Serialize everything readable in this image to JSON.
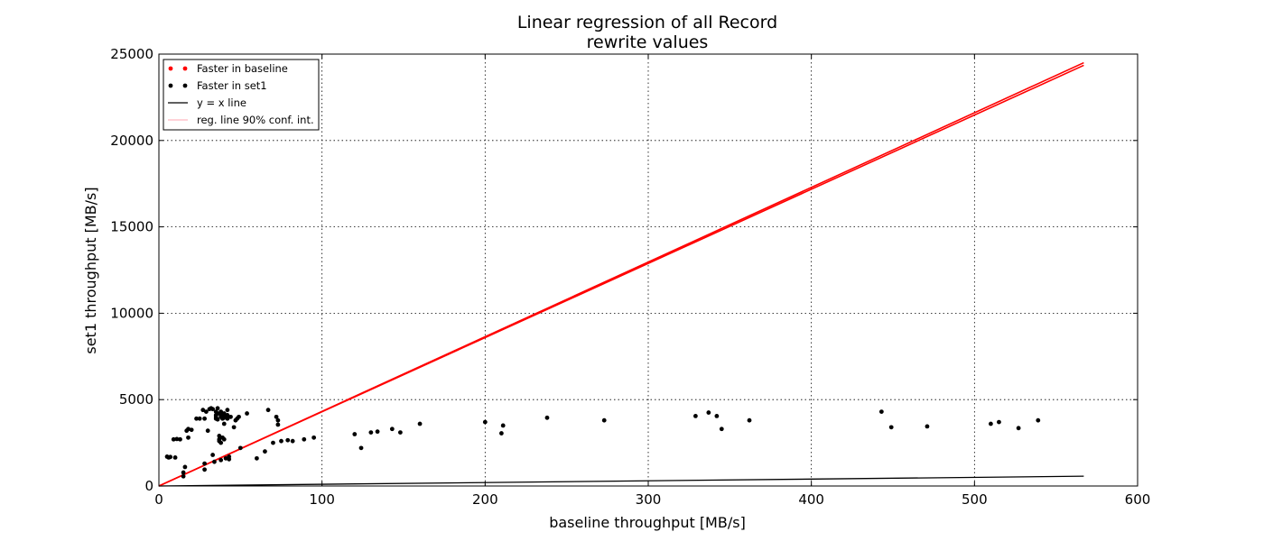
{
  "chart_data": {
    "type": "scatter",
    "title": [
      "Linear regression of all Record",
      "rewrite values"
    ],
    "xlabel": "baseline throughput [MB/s]",
    "ylabel": "set1 throughput [MB/s]",
    "xlim": [
      0,
      600
    ],
    "ylim": [
      0,
      25000
    ],
    "xticks": [
      0,
      100,
      200,
      300,
      400,
      500,
      600
    ],
    "yticks": [
      0,
      5000,
      10000,
      15000,
      20000,
      25000
    ],
    "grid": true,
    "legend_position": "top-left",
    "legend": [
      {
        "label": "Faster in baseline",
        "type": "dots",
        "color": "#ff0000"
      },
      {
        "label": "Faster in set1",
        "type": "dots",
        "color": "#000000"
      },
      {
        "label": "y = x line",
        "type": "line",
        "color": "#000000"
      },
      {
        "label": "reg. line 90% conf. int.",
        "type": "line",
        "color": "#ffb6c1"
      }
    ],
    "series": [
      {
        "name": "Faster in baseline",
        "color": "#ff0000",
        "points": []
      },
      {
        "name": "Faster in set1",
        "color": "#000000",
        "points": [
          [
            5,
            1700
          ],
          [
            6,
            1650
          ],
          [
            7,
            1680
          ],
          [
            10,
            1650
          ],
          [
            9,
            2700
          ],
          [
            11,
            2720
          ],
          [
            13,
            2700
          ],
          [
            15,
            780
          ],
          [
            15,
            560
          ],
          [
            16,
            1100
          ],
          [
            17,
            3200
          ],
          [
            18,
            3300
          ],
          [
            18,
            2800
          ],
          [
            20,
            3250
          ],
          [
            23,
            3900
          ],
          [
            25,
            3900
          ],
          [
            27,
            4400
          ],
          [
            28,
            1300
          ],
          [
            28,
            950
          ],
          [
            28,
            3900
          ],
          [
            29,
            4300
          ],
          [
            30,
            3200
          ],
          [
            31,
            4450
          ],
          [
            32,
            4500
          ],
          [
            33,
            1800
          ],
          [
            33,
            4450
          ],
          [
            34,
            1400
          ],
          [
            35,
            4300
          ],
          [
            35,
            4100
          ],
          [
            35,
            4000
          ],
          [
            35,
            3900
          ],
          [
            36,
            4500
          ],
          [
            36,
            4200
          ],
          [
            36,
            3850
          ],
          [
            37,
            2900
          ],
          [
            37,
            2700
          ],
          [
            37,
            2600
          ],
          [
            38,
            4300
          ],
          [
            38,
            4100
          ],
          [
            38,
            4000
          ],
          [
            38,
            2500
          ],
          [
            38,
            1500
          ],
          [
            39,
            4100
          ],
          [
            39,
            4000
          ],
          [
            39,
            3900
          ],
          [
            39,
            2800
          ],
          [
            40,
            4200
          ],
          [
            40,
            3950
          ],
          [
            40,
            3600
          ],
          [
            40,
            2700
          ],
          [
            41,
            4050
          ],
          [
            41,
            1600
          ],
          [
            42,
            4100
          ],
          [
            42,
            3900
          ],
          [
            42,
            4400
          ],
          [
            43,
            1550
          ],
          [
            43,
            1700
          ],
          [
            44,
            4000
          ],
          [
            46,
            3400
          ],
          [
            47,
            3800
          ],
          [
            48,
            3900
          ],
          [
            49,
            4000
          ],
          [
            50,
            2200
          ],
          [
            54,
            4200
          ],
          [
            60,
            1600
          ],
          [
            65,
            2000
          ],
          [
            67,
            4400
          ],
          [
            70,
            2500
          ],
          [
            72,
            4000
          ],
          [
            73,
            3800
          ],
          [
            73,
            3550
          ],
          [
            75,
            2600
          ],
          [
            79,
            2650
          ],
          [
            82,
            2600
          ],
          [
            89,
            2700
          ],
          [
            95,
            2800
          ],
          [
            120,
            3000
          ],
          [
            124,
            2200
          ],
          [
            130,
            3100
          ],
          [
            134,
            3150
          ],
          [
            143,
            3300
          ],
          [
            148,
            3100
          ],
          [
            160,
            3600
          ],
          [
            200,
            3700
          ],
          [
            210,
            3050
          ],
          [
            211,
            3500
          ],
          [
            238,
            3950
          ],
          [
            273,
            3800
          ],
          [
            329,
            4050
          ],
          [
            337,
            4250
          ],
          [
            342,
            4050
          ],
          [
            345,
            3300
          ],
          [
            362,
            3800
          ],
          [
            443,
            4300
          ],
          [
            449,
            3400
          ],
          [
            471,
            3450
          ],
          [
            510,
            3600
          ],
          [
            515,
            3700
          ],
          [
            527,
            3350
          ],
          [
            539,
            3800
          ]
        ]
      }
    ],
    "lines": [
      {
        "name": "y = x line",
        "color": "#000000",
        "x": [
          0,
          567
        ],
        "y": [
          0,
          567
        ]
      },
      {
        "name": "reg. line 90% conf. int.",
        "color": "#ff0000",
        "x": [
          0,
          567
        ],
        "y": [
          0,
          24500
        ]
      },
      {
        "name": "reg. line 90% conf. int.",
        "color": "#ff0000",
        "x": [
          0,
          567
        ],
        "y": [
          0,
          24350
        ]
      }
    ]
  }
}
